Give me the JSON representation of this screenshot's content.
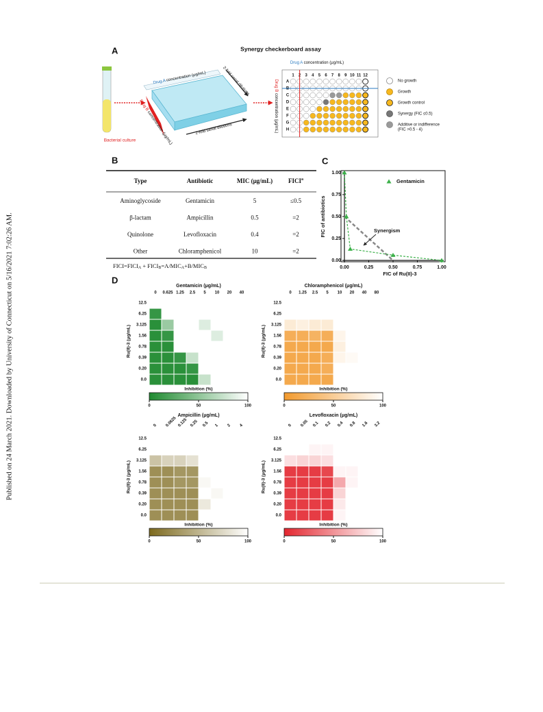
{
  "side_note": "Published on 24 March 2021. Downloaded by University of Connecticut on 5/16/2021 7:02:26 AM.",
  "panel_a": {
    "label": "A",
    "title": "Synergy checkerboard assay",
    "drug_a": "Drug A",
    "drug_b": "Drug B",
    "concentration": "concentration (μg/mL)",
    "dilutions": "2-fold serial dilutions",
    "culture": "Bacterial culture",
    "columns": [
      "1",
      "2",
      "3",
      "4",
      "5",
      "6",
      "7",
      "8",
      "9",
      "10",
      "11",
      "12"
    ],
    "rows": [
      "A",
      "B",
      "C",
      "D",
      "E",
      "F",
      "G",
      "H"
    ],
    "legend": [
      "No growth",
      "Growth",
      "Growth control",
      "Synergy (FIC ≤0.5)",
      "Additive or indifference",
      "(FIC >0.5 - 4)"
    ]
  },
  "panel_b": {
    "label": "B",
    "header": [
      "Type",
      "Antibiotic",
      "MIC (μg/mL)",
      "FICI"
    ],
    "header_sup": "a",
    "rows": [
      [
        "Aminoglycoside",
        "Gentamicin",
        "5",
        "≤0.5"
      ],
      [
        "β-lactam",
        "Ampicillin",
        "0.5",
        "=2"
      ],
      [
        "Quinolone",
        "Levofloxacin",
        "0.4",
        "=2"
      ],
      [
        "Other",
        "Chloramphenicol",
        "10",
        "=2"
      ]
    ],
    "footnote_parts": [
      "FICI=FICI",
      "A",
      " + FICI",
      "B",
      "=A/MIC",
      "A",
      "+B/MIC",
      "B"
    ]
  },
  "chart_data": {
    "type": "line",
    "label": "C",
    "x_label": "FIC of Ru(II)-3",
    "y_label": "FIC of antibiotics",
    "x": [
      0,
      0.02,
      0.06,
      0.5,
      1
    ],
    "series": [
      {
        "name": "Gentamicin",
        "color": "#3cb04a",
        "values": [
          1,
          0.5,
          0.13,
          0.06,
          0
        ]
      }
    ],
    "reference": {
      "x": [
        0,
        0.5
      ],
      "values": [
        0.5,
        0
      ],
      "color": "#888888"
    },
    "annotation": "Synergism",
    "xlim": [
      0,
      1
    ],
    "ylim": [
      0,
      1
    ],
    "xticks": [
      {
        "value": 0,
        "label": "0.00"
      },
      {
        "value": 0.25,
        "label": "0.25"
      },
      {
        "value": 0.5,
        "label": "0.50"
      },
      {
        "value": 0.75,
        "label": "0.75"
      },
      {
        "value": 1,
        "label": "1.00"
      }
    ],
    "yticks": [
      {
        "value": 0,
        "label": "0.00"
      },
      {
        "value": 0.25,
        "label": "0.25"
      },
      {
        "value": 0.5,
        "label": "0.50"
      },
      {
        "value": 0.75,
        "label": "0.75"
      },
      {
        "value": 1,
        "label": "1.00"
      }
    ],
    "legend": "upper right"
  },
  "panel_d": {
    "label": "D",
    "y_label": "Ru(II)-3 (μg/mL)",
    "row_labels": [
      "12.5",
      "6.25",
      "3.125",
      "1.56",
      "0.78",
      "0.39",
      "0.20",
      "0.0"
    ],
    "colorbar_label": "Inhibition (%)",
    "colorbar_ticks": [
      0,
      50,
      100
    ],
    "heatmaps": [
      {
        "title": "Gentamicin (μg/mL)",
        "color": "#1f8a30",
        "columns": [
          "0",
          "0.625",
          "1.25",
          "2.5",
          "5",
          "10",
          "20",
          "40"
        ],
        "values": [
          [
            100,
            100,
            100,
            100,
            100,
            100,
            100,
            100
          ],
          [
            10,
            100,
            100,
            100,
            100,
            100,
            100,
            100
          ],
          [
            5,
            55,
            100,
            100,
            85,
            100,
            100,
            100
          ],
          [
            5,
            10,
            100,
            100,
            100,
            85,
            100,
            100
          ],
          [
            5,
            5,
            100,
            100,
            100,
            100,
            100,
            100
          ],
          [
            5,
            5,
            10,
            75,
            100,
            100,
            100,
            100
          ],
          [
            5,
            5,
            5,
            10,
            100,
            100,
            100,
            100
          ],
          [
            5,
            5,
            5,
            5,
            75,
            100,
            100,
            100
          ]
        ]
      },
      {
        "title": "Chloramphenicol (μg/mL)",
        "color": "#f29a2e",
        "columns": [
          "0",
          "1.25",
          "2.5",
          "5",
          "10",
          "20",
          "40",
          "80"
        ],
        "values": [
          [
            100,
            100,
            100,
            100,
            100,
            100,
            100,
            100
          ],
          [
            100,
            100,
            100,
            100,
            100,
            100,
            100,
            100
          ],
          [
            80,
            85,
            80,
            80,
            100,
            100,
            100,
            100
          ],
          [
            20,
            20,
            25,
            20,
            90,
            100,
            100,
            100
          ],
          [
            15,
            15,
            15,
            15,
            85,
            100,
            100,
            100
          ],
          [
            15,
            15,
            15,
            20,
            90,
            95,
            100,
            100
          ],
          [
            15,
            15,
            15,
            20,
            100,
            100,
            100,
            100
          ],
          [
            15,
            15,
            15,
            15,
            100,
            100,
            100,
            100
          ]
        ]
      },
      {
        "title": "Ampicillin (μg/mL)",
        "color": "#7d6a1e",
        "columns": [
          "0",
          "0.0625",
          "0.125",
          "0.25",
          "0.5",
          "1",
          "2",
          "4"
        ],
        "values": [
          [
            100,
            100,
            100,
            100,
            100,
            100,
            100,
            100
          ],
          [
            100,
            100,
            100,
            100,
            100,
            100,
            100,
            100
          ],
          [
            60,
            70,
            70,
            80,
            100,
            100,
            100,
            100
          ],
          [
            25,
            25,
            30,
            30,
            100,
            100,
            100,
            100
          ],
          [
            25,
            25,
            30,
            30,
            95,
            100,
            100,
            100
          ],
          [
            25,
            25,
            25,
            25,
            100,
            95,
            100,
            100
          ],
          [
            25,
            25,
            25,
            25,
            85,
            100,
            100,
            100
          ],
          [
            25,
            25,
            25,
            25,
            100,
            100,
            100,
            100
          ]
        ]
      },
      {
        "title": "Levofloxacin (μg/mL)",
        "color": "#e3262f",
        "columns": [
          "0",
          "0.05",
          "0.1",
          "0.2",
          "0.4",
          "0.8",
          "1.6",
          "3.2"
        ],
        "values": [
          [
            100,
            100,
            100,
            100,
            100,
            100,
            100,
            100
          ],
          [
            100,
            100,
            95,
            95,
            100,
            100,
            100,
            100
          ],
          [
            85,
            80,
            80,
            85,
            100,
            100,
            100,
            100
          ],
          [
            10,
            10,
            10,
            15,
            95,
            95,
            100,
            100
          ],
          [
            10,
            10,
            10,
            10,
            60,
            95,
            100,
            100
          ],
          [
            10,
            10,
            10,
            10,
            80,
            100,
            100,
            100
          ],
          [
            10,
            10,
            10,
            10,
            90,
            100,
            100,
            100
          ],
          [
            10,
            10,
            10,
            10,
            95,
            100,
            100,
            100
          ]
        ]
      }
    ]
  }
}
